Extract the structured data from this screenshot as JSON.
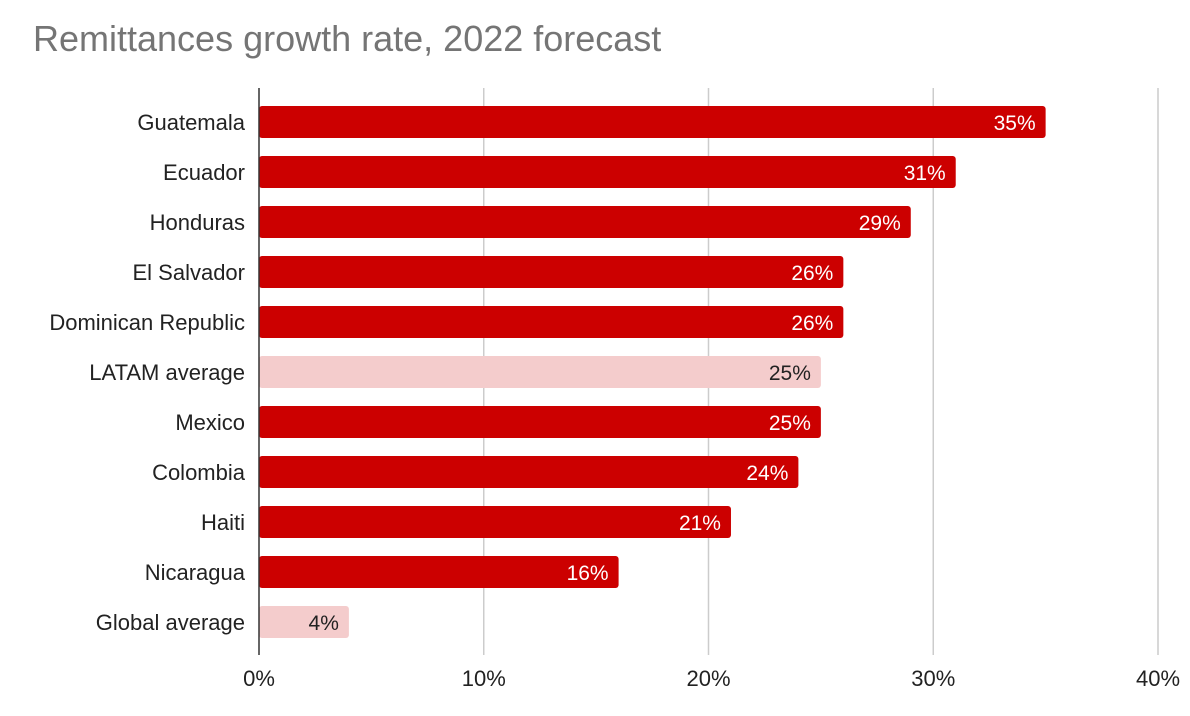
{
  "chart_data": {
    "type": "bar",
    "orientation": "horizontal",
    "title": "Remittances growth rate, 2022 forecast",
    "xlabel": "",
    "ylabel": "",
    "categories": [
      "Guatemala",
      "Ecuador",
      "Honduras",
      "El Salvador",
      "Dominican Republic",
      "LATAM average",
      "Mexico",
      "Colombia",
      "Haiti",
      "Nicaragua",
      "Global average"
    ],
    "values": [
      35,
      31,
      29,
      26,
      26,
      25,
      25,
      24,
      21,
      16,
      4
    ],
    "value_labels": [
      "35%",
      "31%",
      "29%",
      "26%",
      "26%",
      "25%",
      "25%",
      "24%",
      "21%",
      "16%",
      "4%"
    ],
    "highlight": [
      false,
      false,
      false,
      false,
      false,
      true,
      false,
      false,
      false,
      false,
      true
    ],
    "xlim": [
      0,
      40
    ],
    "xticks": [
      0,
      10,
      20,
      30,
      40
    ],
    "xtick_labels": [
      "0%",
      "10%",
      "20%",
      "30%",
      "40%"
    ],
    "grid": true,
    "legend": "none",
    "colors": {
      "bar": "#cc0000",
      "bar_highlight": "#f4cccc",
      "label_on_bar": "#ffffff",
      "label_on_highlight": "#222222",
      "grid": "#cccccc",
      "axis": "#333333"
    }
  }
}
